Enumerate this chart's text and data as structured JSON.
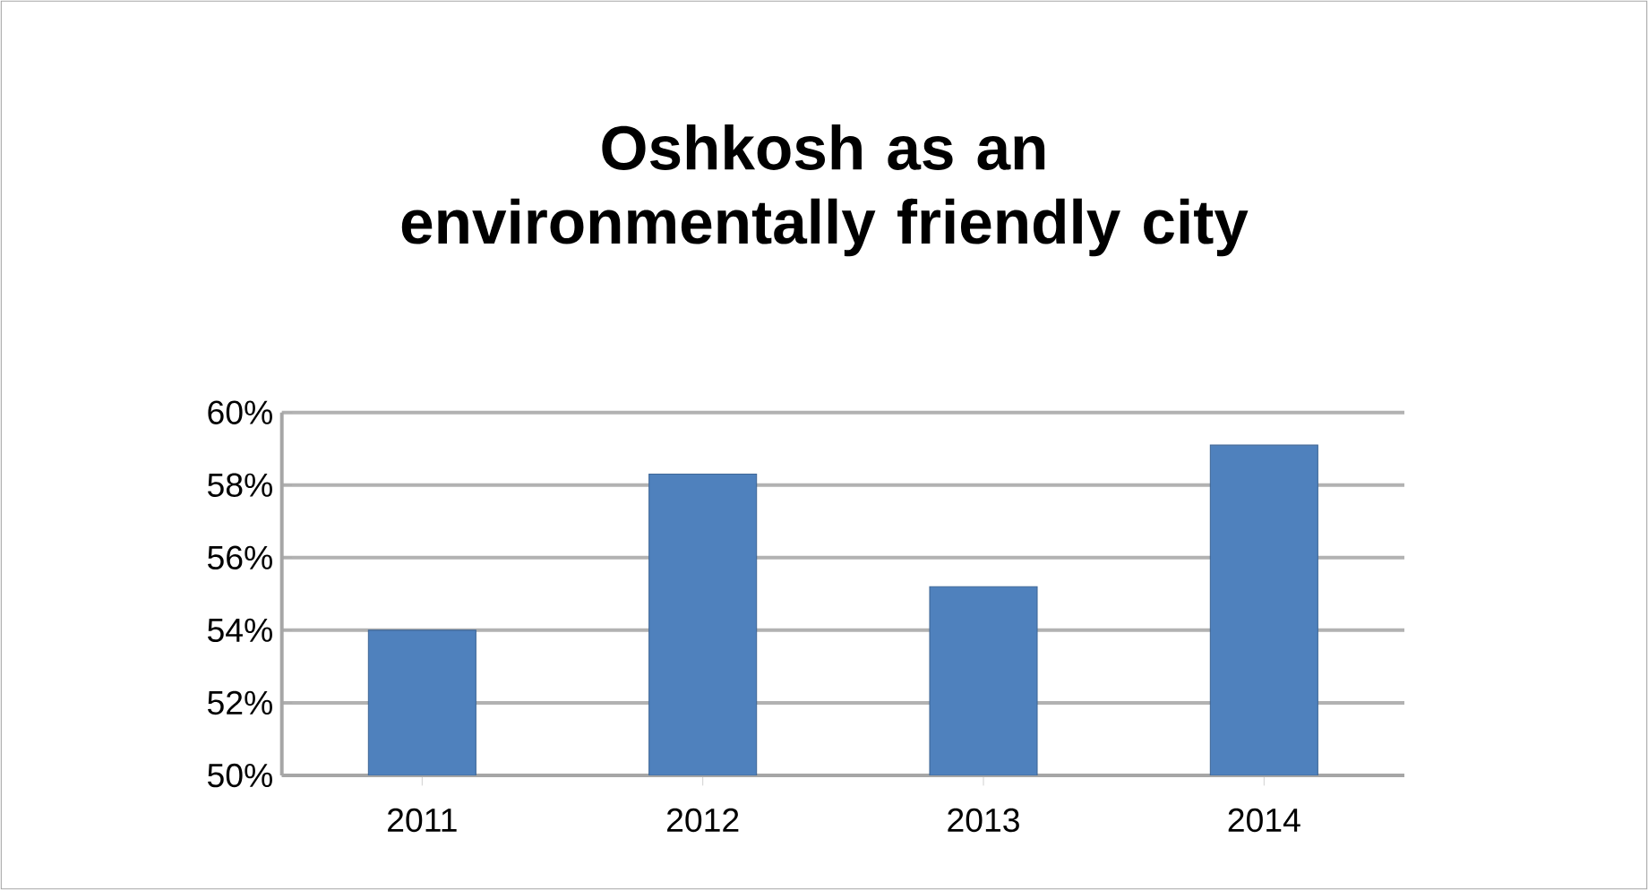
{
  "chart_data": {
    "type": "bar",
    "title": "Oshkosh as an environmentally friendly city",
    "categories": [
      "2011",
      "2012",
      "2013",
      "2014"
    ],
    "values": [
      54.0,
      58.3,
      55.2,
      59.1
    ],
    "color": "#4f81bd",
    "ylim": [
      50,
      60
    ],
    "yticks": [
      {
        "value": 50,
        "label": "50%"
      },
      {
        "value": 52,
        "label": "52%"
      },
      {
        "value": 54,
        "label": "54%"
      },
      {
        "value": 56,
        "label": "56%"
      },
      {
        "value": 58,
        "label": "58%"
      },
      {
        "value": 60,
        "label": "60%"
      }
    ],
    "grid": "y"
  }
}
